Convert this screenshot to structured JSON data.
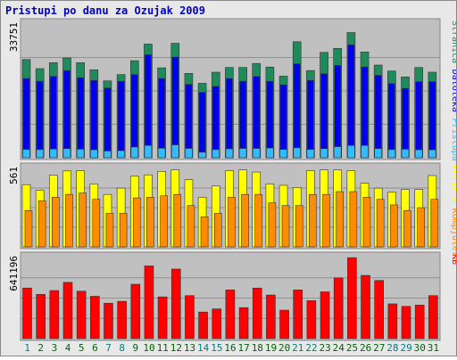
{
  "title": "Pristupi po danu za Ozujak 2009",
  "colors": {
    "background": "#e8e8e8",
    "panel": "#c0c0c0",
    "title": "#0000cc",
    "grid": "#909090",
    "pages": "#1f8a5a",
    "files": "#0000ee",
    "hits": "#33bbff",
    "visits": "#ffff00",
    "sites": "#ff8c00",
    "kb": "#ff0000",
    "weekday": "#006600",
    "weekend": "#008080"
  },
  "chart_data": [
    {
      "type": "bar",
      "panel": "top",
      "ymax_label": "33751",
      "ylim": [
        0,
        33751
      ],
      "categories": [
        "1",
        "2",
        "3",
        "4",
        "5",
        "6",
        "7",
        "8",
        "9",
        "10",
        "11",
        "12",
        "13",
        "14",
        "15",
        "16",
        "17",
        "18",
        "19",
        "20",
        "21",
        "22",
        "23",
        "24",
        "25",
        "26",
        "27",
        "28",
        "29",
        "30",
        "31"
      ],
      "right_labels": [
        "Stranica",
        "Datoteka",
        "Pristupa"
      ],
      "series": [
        {
          "name": "Stranica",
          "color": "#1f8a5a",
          "values": [
            24800,
            22500,
            24000,
            25200,
            24000,
            22200,
            19400,
            21000,
            24500,
            28700,
            22700,
            28900,
            21300,
            18800,
            21600,
            22800,
            22800,
            23800,
            22900,
            20600,
            29300,
            22000,
            26600,
            27600,
            31600,
            26700,
            23400,
            21900,
            20400,
            22800,
            21600
          ]
        },
        {
          "name": "Datoteka",
          "color": "#0000ee",
          "values": [
            20000,
            19300,
            20500,
            22000,
            20200,
            19500,
            17600,
            19300,
            21000,
            26000,
            20000,
            25400,
            18500,
            16500,
            18000,
            20000,
            19300,
            20500,
            19300,
            18400,
            23700,
            19500,
            21200,
            23300,
            28500,
            22900,
            20800,
            18700,
            17500,
            19200,
            19200
          ]
        },
        {
          "name": "Pristupa",
          "color": "#33bbff",
          "values": [
            2100,
            2050,
            2200,
            2300,
            2150,
            2000,
            1700,
            1800,
            2700,
            3100,
            2400,
            3250,
            2350,
            1400,
            2050,
            2250,
            2350,
            2350,
            2450,
            2100,
            2500,
            2100,
            2300,
            2800,
            3100,
            3100,
            2300,
            2050,
            2150,
            2000,
            2000
          ]
        }
      ]
    },
    {
      "type": "bar",
      "panel": "middle",
      "ymax_label": "561",
      "ylim": [
        0,
        561
      ],
      "categories": [
        "1",
        "2",
        "3",
        "4",
        "5",
        "6",
        "7",
        "8",
        "9",
        "10",
        "11",
        "12",
        "13",
        "14",
        "15",
        "16",
        "17",
        "18",
        "19",
        "20",
        "21",
        "22",
        "23",
        "24",
        "25",
        "26",
        "27",
        "28",
        "29",
        "30",
        "31"
      ],
      "right_labels": [
        "Posjeta",
        "Kompjutera"
      ],
      "series": [
        {
          "name": "Posjeta",
          "color": "#ffff00",
          "values": [
            445,
            405,
            513,
            543,
            545,
            450,
            375,
            420,
            505,
            515,
            540,
            550,
            480,
            355,
            435,
            545,
            550,
            535,
            450,
            440,
            425,
            545,
            550,
            550,
            545,
            455,
            420,
            390,
            410,
            410,
            510
          ]
        },
        {
          "name": "Kompjutera",
          "color": "#ff8c00",
          "values": [
            260,
            330,
            355,
            375,
            385,
            340,
            240,
            240,
            350,
            355,
            365,
            375,
            295,
            215,
            240,
            355,
            375,
            375,
            315,
            295,
            295,
            375,
            375,
            395,
            395,
            355,
            340,
            300,
            260,
            280,
            340
          ]
        }
      ]
    },
    {
      "type": "bar",
      "panel": "bottom",
      "ymax_label": "641196",
      "ylim": [
        0,
        641196
      ],
      "categories": [
        "1",
        "2",
        "3",
        "4",
        "5",
        "6",
        "7",
        "8",
        "9",
        "10",
        "11",
        "12",
        "13",
        "14",
        "15",
        "16",
        "17",
        "18",
        "19",
        "20",
        "21",
        "22",
        "23",
        "24",
        "25",
        "26",
        "27",
        "28",
        "29",
        "30",
        "31"
      ],
      "weekend_days": [
        "1",
        "7",
        "8",
        "14",
        "15",
        "21",
        "22",
        "28",
        "29"
      ],
      "right_labels": [
        "KB"
      ],
      "series": [
        {
          "name": "KB",
          "color": "#ff0000",
          "values": [
            400000,
            350000,
            380000,
            445000,
            375000,
            335000,
            280000,
            295000,
            430000,
            575000,
            330000,
            550000,
            340000,
            210000,
            235000,
            385000,
            245000,
            400000,
            345000,
            225000,
            385000,
            300000,
            370000,
            480000,
            640000,
            500000,
            460000,
            275000,
            255000,
            265000,
            340000
          ]
        }
      ]
    }
  ]
}
